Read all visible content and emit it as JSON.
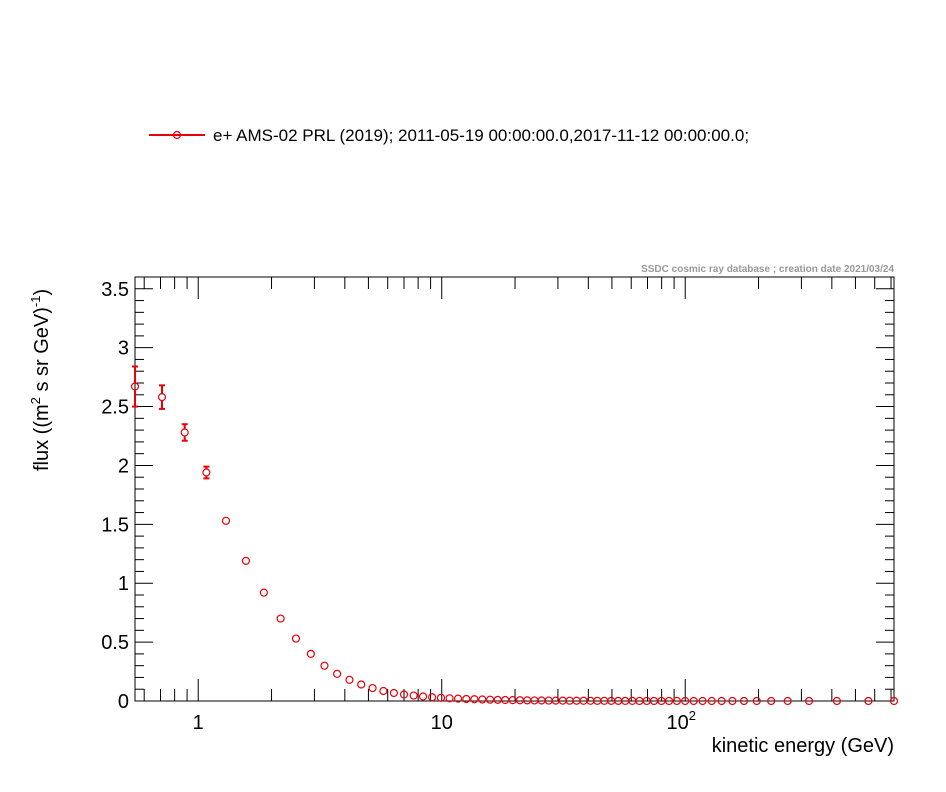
{
  "chart_data": {
    "type": "scatter",
    "title": "",
    "credit": "SSDC cosmic ray database ; creation date 2021/03/24",
    "xlabel": "kinetic energy (GeV)",
    "ylabel": "flux ((m^2 s sr GeV)^-1)",
    "ylabel_parts": {
      "pre": "flux ((m",
      "sup1": "2",
      "mid": " s sr GeV)",
      "sup2": "-1",
      "post": ")"
    },
    "x_scale": "log",
    "xlim": [
      0.55,
      720
    ],
    "ylim": [
      0,
      3.6
    ],
    "x_tick_labels": [
      {
        "value": 1,
        "text": "1"
      },
      {
        "value": 10,
        "text": "10"
      },
      {
        "value": 100,
        "base": "10",
        "exp": "2"
      }
    ],
    "y_tick_labels": [
      "0",
      "0.5",
      "1",
      "1.5",
      "2",
      "2.5",
      "3",
      "3.5"
    ],
    "y_ticks": [
      0,
      0.5,
      1,
      1.5,
      2,
      2.5,
      3,
      3.5
    ],
    "grid": false,
    "legend_position": "top",
    "colors": {
      "series": "#e8000b",
      "axis": "#000000",
      "credit": "#999999"
    },
    "series": [
      {
        "name": "e+ AMS-02 PRL (2019); 2011-05-19 00:00:00.0,2017-11-12 00:00:00.0;",
        "marker": "open-circle",
        "x": [
          0.55,
          0.71,
          0.88,
          1.08,
          1.3,
          1.57,
          1.86,
          2.18,
          2.52,
          2.9,
          3.3,
          3.72,
          4.18,
          4.67,
          5.2,
          5.76,
          6.36,
          7.0,
          7.67,
          8.38,
          9.13,
          9.93,
          10.77,
          11.67,
          12.62,
          13.62,
          14.68,
          15.8,
          16.98,
          18.23,
          19.56,
          20.96,
          22.45,
          24.03,
          25.71,
          27.5,
          29.39,
          31.39,
          33.53,
          35.8,
          38.22,
          40.8,
          43.55,
          46.5,
          49.68,
          53.08,
          56.72,
          60.65,
          64.9,
          69.49,
          74.45,
          79.86,
          85.8,
          92.4,
          99.9,
          108.3,
          117.8,
          128.5,
          141.1,
          156.2,
          174.3,
          196.6,
          225.4,
          263.5,
          322.5,
          419.7,
          565.1,
          812.5
        ],
        "y": [
          2.67,
          2.58,
          2.28,
          1.94,
          1.53,
          1.19,
          0.92,
          0.7,
          0.53,
          0.4,
          0.3,
          0.23,
          0.18,
          0.14,
          0.11,
          0.085,
          0.068,
          0.055,
          0.046,
          0.038,
          0.032,
          0.027,
          0.023,
          0.02,
          0.017,
          0.015,
          0.013,
          0.011,
          0.0095,
          0.0083,
          0.0073,
          0.0064,
          0.0056,
          0.0049,
          0.0043,
          0.0038,
          0.0033,
          0.0029,
          0.0026,
          0.0023,
          0.002,
          0.0018,
          0.0016,
          0.0014,
          0.0012,
          0.0011,
          0.00095,
          0.00083,
          0.00072,
          0.00063,
          0.00055,
          0.00048,
          0.00041,
          0.00035,
          0.0003,
          0.00025,
          0.00021,
          0.00017,
          0.00014,
          0.00011,
          9e-05,
          7e-05,
          5e-05,
          4e-05,
          3e-05,
          2e-05,
          1e-05,
          5e-06
        ],
        "y_err": [
          0.17,
          0.1,
          0.07,
          0.05,
          0.03,
          0.012,
          0.01,
          0.008,
          0.006,
          0.005,
          0.004,
          0.003,
          0.002,
          0.002,
          0.001,
          0.001,
          0.001,
          0.001,
          0.0008,
          0.0007,
          0.0006,
          0.0005,
          0.0005,
          0.0004,
          0.0004,
          0.0003,
          0.0003,
          0.0003,
          0.0002,
          0.0002,
          0.0002,
          0.0002,
          0.0002,
          0.0001,
          0.0001,
          0.0001,
          0.0001,
          0.0001,
          0.0001,
          0.0001,
          0.0001,
          0.0001,
          0.0001,
          0.0001,
          0.0001,
          0.0001,
          0.0001,
          0.0001,
          0.0001,
          0.0001,
          0.0001,
          0.0001,
          0.0001,
          0.0001,
          0.0001,
          0.0001,
          0.0001,
          0.0001,
          0.0001,
          0.0001,
          0.0001,
          0.0001,
          0.0001,
          0.0001,
          0.0001,
          0.0001,
          0.0001,
          0.0001
        ]
      }
    ]
  }
}
